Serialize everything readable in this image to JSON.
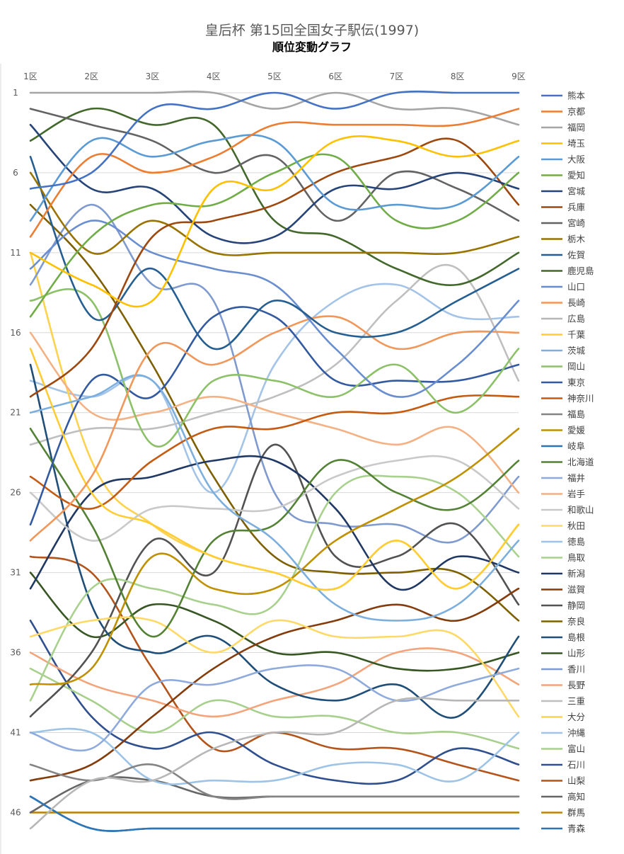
{
  "chart_data": {
    "type": "line",
    "title": "皇后杯 第15回全国女子駅伝(1997)",
    "subtitle": "順位変動グラフ",
    "x": [
      "1区",
      "2区",
      "3区",
      "4区",
      "5区",
      "6区",
      "7区",
      "8区",
      "9区"
    ],
    "y_tick_labels": [
      "1",
      "6",
      "11",
      "16",
      "21",
      "26",
      "31",
      "36",
      "41",
      "46"
    ],
    "ylim": [
      47,
      1
    ],
    "y_reversed": true,
    "grid": true,
    "legend_position": "right",
    "series": [
      {
        "name": "熊本",
        "color": "#4472C4",
        "values": [
          7,
          6,
          2,
          2,
          1,
          2,
          1,
          1,
          1
        ]
      },
      {
        "name": "京都",
        "color": "#ED7D31",
        "values": [
          10,
          5,
          6,
          5,
          3,
          3,
          3,
          3,
          2
        ]
      },
      {
        "name": "福岡",
        "color": "#A5A5A5",
        "values": [
          1,
          1,
          1,
          1,
          2,
          1,
          2,
          2,
          3
        ]
      },
      {
        "name": "埼玉",
        "color": "#FFC000",
        "values": [
          11,
          13,
          14,
          7,
          7,
          4,
          4,
          5,
          4
        ]
      },
      {
        "name": "大阪",
        "color": "#5B9BD5",
        "values": [
          9,
          4,
          5,
          4,
          4,
          8,
          8,
          8,
          5
        ]
      },
      {
        "name": "愛知",
        "color": "#70AD47",
        "values": [
          15,
          10,
          8,
          8,
          6,
          5,
          9,
          9,
          6
        ]
      },
      {
        "name": "宮城",
        "color": "#264478",
        "values": [
          3,
          7,
          7,
          10,
          10,
          7,
          7,
          6,
          7
        ]
      },
      {
        "name": "兵庫",
        "color": "#9E480E",
        "values": [
          20,
          17,
          10,
          9,
          8,
          6,
          5,
          4,
          8
        ]
      },
      {
        "name": "宮崎",
        "color": "#636363",
        "values": [
          2,
          3,
          4,
          6,
          5,
          9,
          6,
          7,
          9
        ]
      },
      {
        "name": "栃木",
        "color": "#997300",
        "values": [
          6,
          11,
          9,
          11,
          11,
          11,
          11,
          11,
          10
        ]
      },
      {
        "name": "佐賀",
        "color": "#255E91",
        "values": [
          5,
          15,
          12,
          17,
          14,
          16,
          16,
          14,
          12
        ]
      },
      {
        "name": "鹿児島",
        "color": "#43682B",
        "values": [
          4,
          2,
          3,
          3,
          9,
          10,
          12,
          13,
          11
        ]
      },
      {
        "name": "山口",
        "color": "#698ED0",
        "values": [
          12,
          9,
          11,
          12,
          13,
          17,
          20,
          18,
          14
        ]
      },
      {
        "name": "長崎",
        "color": "#F1975A",
        "values": [
          29,
          25,
          17,
          18,
          16,
          15,
          17,
          16,
          16
        ]
      },
      {
        "name": "広島",
        "color": "#B7B7B7",
        "values": [
          47,
          44,
          44,
          42,
          41,
          41,
          39,
          39,
          39
        ]
      },
      {
        "name": "千葉",
        "color": "#FFCD33",
        "values": [
          17,
          26,
          28,
          30,
          31,
          32,
          29,
          32,
          28
        ]
      },
      {
        "name": "茨城",
        "color": "#7CAFDD",
        "values": [
          21,
          20,
          19,
          26,
          29,
          33,
          34,
          33,
          29
        ]
      },
      {
        "name": "岡山",
        "color": "#8CC168",
        "values": [
          14,
          14,
          23,
          19,
          19,
          20,
          18,
          21,
          17
        ]
      },
      {
        "name": "東京",
        "color": "#335AA1",
        "values": [
          28,
          19,
          20,
          15,
          15,
          19,
          19,
          19,
          18
        ]
      },
      {
        "name": "神奈川",
        "color": "#C55A11",
        "values": [
          25,
          27,
          24,
          22,
          22,
          21,
          21,
          20,
          20
        ]
      },
      {
        "name": "福島",
        "color": "#848484",
        "values": [
          43,
          44,
          43,
          45,
          45,
          45,
          45,
          45,
          45
        ]
      },
      {
        "name": "愛媛",
        "color": "#BF9000",
        "values": [
          38,
          37,
          30,
          32,
          32,
          29,
          27,
          25,
          22
        ]
      },
      {
        "name": "岐阜",
        "color": "#2E75B6",
        "values": [
          45,
          47,
          47,
          47,
          47,
          47,
          47,
          47,
          47
        ]
      },
      {
        "name": "北海道",
        "color": "#548235",
        "values": [
          22,
          28,
          35,
          29,
          28,
          24,
          26,
          27,
          24
        ]
      },
      {
        "name": "福井",
        "color": "#8FAADC",
        "values": [
          41,
          42,
          38,
          38,
          37,
          37,
          39,
          38,
          37
        ]
      },
      {
        "name": "岩手",
        "color": "#F4B183",
        "values": [
          16,
          21,
          21,
          20,
          21,
          22,
          23,
          22,
          26
        ]
      },
      {
        "name": "和歌山",
        "color": "#C9C9C9",
        "values": [
          26,
          29,
          27,
          27,
          27,
          25,
          24,
          24,
          27
        ]
      },
      {
        "name": "秋田",
        "color": "#FFD966",
        "values": [
          35,
          34,
          34,
          36,
          34,
          35,
          35,
          35,
          40
        ]
      },
      {
        "name": "徳島",
        "color": "#9DC3E6",
        "values": [
          41,
          41,
          44,
          44,
          44,
          43,
          43,
          44,
          41
        ]
      },
      {
        "name": "鳥取",
        "color": "#A9D18E",
        "values": [
          39,
          32,
          32,
          33,
          33,
          26,
          25,
          26,
          30
        ]
      },
      {
        "name": "新潟",
        "color": "#203864",
        "values": [
          32,
          26,
          25,
          24,
          24,
          27,
          32,
          30,
          31
        ]
      },
      {
        "name": "滋賀",
        "color": "#843C0C",
        "values": [
          44,
          43,
          40,
          37,
          35,
          34,
          33,
          34,
          32
        ]
      },
      {
        "name": "静岡",
        "color": "#525252",
        "values": [
          40,
          36,
          29,
          31,
          23,
          30,
          30,
          28,
          33
        ]
      },
      {
        "name": "奈良",
        "color": "#7F6000",
        "values": [
          8,
          12,
          18,
          25,
          30,
          31,
          31,
          31,
          34
        ]
      },
      {
        "name": "島根",
        "color": "#1F4E79",
        "values": [
          18,
          33,
          36,
          35,
          38,
          39,
          38,
          40,
          35
        ]
      },
      {
        "name": "山形",
        "color": "#375623",
        "values": [
          31,
          35,
          33,
          34,
          36,
          36,
          37,
          37,
          36
        ]
      },
      {
        "name": "香川",
        "color": "#7F9ACF",
        "values": [
          13,
          8,
          13,
          14,
          26,
          28,
          28,
          29,
          25
        ]
      },
      {
        "name": "長野",
        "color": "#F4A47A",
        "values": [
          36,
          38,
          39,
          40,
          39,
          38,
          36,
          36,
          38
        ]
      },
      {
        "name": "三重",
        "color": "#BFBFBF",
        "values": [
          23,
          22,
          22,
          21,
          20,
          18,
          14,
          12,
          19
        ]
      },
      {
        "name": "大分",
        "color": "#FFD24D",
        "values": [
          11,
          24,
          28,
          30,
          31,
          32,
          29,
          32,
          28
        ]
      },
      {
        "name": "沖縄",
        "color": "#A3C4E8",
        "values": [
          19,
          20,
          19,
          26,
          18,
          14,
          13,
          15,
          15
        ]
      },
      {
        "name": "富山",
        "color": "#A8D08D",
        "values": [
          37,
          39,
          41,
          39,
          40,
          40,
          41,
          41,
          42
        ]
      },
      {
        "name": "石川",
        "color": "#2F4F8F",
        "values": [
          34,
          40,
          42,
          41,
          43,
          44,
          44,
          42,
          43
        ]
      },
      {
        "name": "山梨",
        "color": "#B4531A",
        "values": [
          30,
          31,
          37,
          42,
          41,
          42,
          42,
          43,
          44
        ]
      },
      {
        "name": "高知",
        "color": "#666666",
        "values": [
          46,
          44,
          44,
          45,
          45,
          45,
          45,
          45,
          45
        ]
      },
      {
        "name": "群馬",
        "color": "#B8860B",
        "values": [
          46,
          46,
          46,
          46,
          46,
          46,
          46,
          46,
          46
        ]
      },
      {
        "name": "青森",
        "color": "#2E75B6",
        "values": [
          45,
          47,
          47,
          47,
          47,
          47,
          47,
          47,
          47
        ]
      }
    ]
  }
}
